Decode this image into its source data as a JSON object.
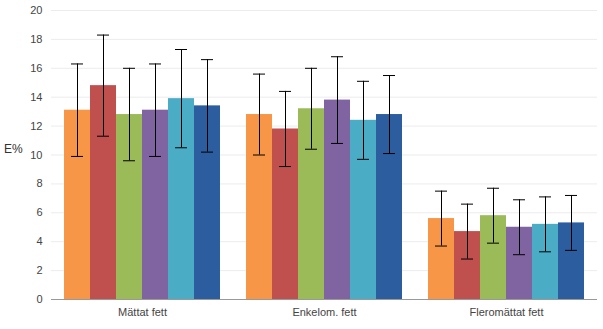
{
  "chart_data": {
    "type": "bar",
    "y_label": "E%",
    "categories": [
      "Mättat fett",
      "Enkelom. fett",
      "Fleromättat fett"
    ],
    "series": [
      {
        "color": "#f79646",
        "values": [
          13.1,
          12.8,
          5.6
        ],
        "errors": [
          3.2,
          2.8,
          1.9
        ]
      },
      {
        "color": "#c0504d",
        "values": [
          14.8,
          11.8,
          4.7
        ],
        "errors": [
          3.5,
          2.6,
          1.9
        ]
      },
      {
        "color": "#9bbb59",
        "values": [
          12.8,
          13.2,
          5.8
        ],
        "errors": [
          3.2,
          2.8,
          1.9
        ]
      },
      {
        "color": "#8064a2",
        "values": [
          13.1,
          13.8,
          5.0
        ],
        "errors": [
          3.2,
          3.0,
          1.9
        ]
      },
      {
        "color": "#4bacc6",
        "values": [
          13.9,
          12.4,
          5.2
        ],
        "errors": [
          3.4,
          2.7,
          1.9
        ]
      },
      {
        "color": "#2c5d9e",
        "values": [
          13.4,
          12.8,
          5.3
        ],
        "errors": [
          3.2,
          2.7,
          1.9
        ]
      }
    ],
    "ylim": [
      0,
      20
    ],
    "yticks": [
      0,
      2,
      4,
      6,
      8,
      10,
      12,
      14,
      16,
      18,
      20
    ],
    "grid": true
  }
}
